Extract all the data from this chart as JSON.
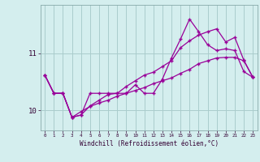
{
  "background_color": "#d4eeee",
  "grid_color": "#aacccc",
  "line_color": "#990099",
  "xlabel": "Windchill (Refroidissement éolien,°C)",
  "x": [
    0,
    1,
    2,
    3,
    4,
    5,
    6,
    7,
    8,
    9,
    10,
    11,
    12,
    13,
    14,
    15,
    16,
    17,
    18,
    19,
    20,
    21,
    22,
    23
  ],
  "line1": [
    10.62,
    10.3,
    10.3,
    9.88,
    9.92,
    10.3,
    10.3,
    10.3,
    10.3,
    10.3,
    10.45,
    10.3,
    10.3,
    10.55,
    10.92,
    11.25,
    11.6,
    11.38,
    11.15,
    11.05,
    11.08,
    11.05,
    10.68,
    10.58
  ],
  "line2": [
    10.62,
    10.3,
    10.3,
    9.88,
    9.92,
    10.08,
    10.18,
    10.28,
    10.3,
    10.42,
    10.52,
    10.62,
    10.67,
    10.77,
    10.87,
    11.1,
    11.22,
    11.32,
    11.38,
    11.43,
    11.2,
    11.28,
    10.88,
    10.58
  ],
  "line3": [
    10.62,
    10.3,
    10.3,
    9.88,
    9.98,
    10.07,
    10.13,
    10.18,
    10.25,
    10.3,
    10.35,
    10.4,
    10.47,
    10.52,
    10.57,
    10.65,
    10.72,
    10.82,
    10.87,
    10.92,
    10.93,
    10.93,
    10.87,
    10.58
  ],
  "ylim": [
    9.65,
    11.85
  ],
  "yticks": [
    10,
    11
  ],
  "xlim": [
    -0.5,
    23.5
  ],
  "xticks": [
    0,
    1,
    2,
    3,
    4,
    5,
    6,
    7,
    8,
    9,
    10,
    11,
    12,
    13,
    14,
    15,
    16,
    17,
    18,
    19,
    20,
    21,
    22,
    23
  ]
}
